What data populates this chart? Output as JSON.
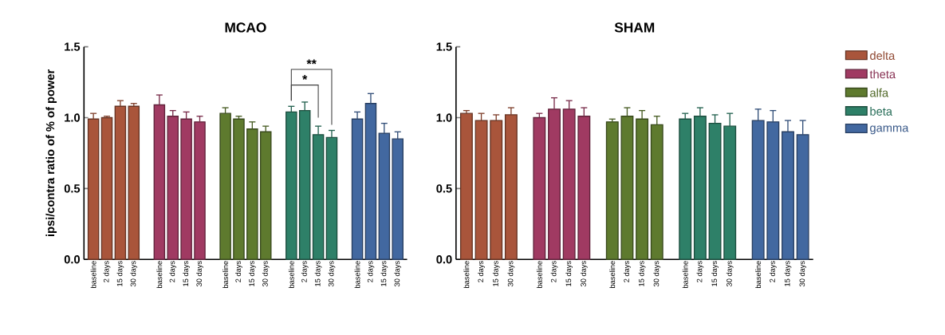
{
  "chart_data": [
    {
      "type": "bar",
      "title": "MCAO",
      "ylabel": "ipsi/contra ratio of % of power",
      "categories": [
        "baseline",
        "2 days",
        "15 days",
        "30 days",
        "baseline",
        "2 days",
        "15 days",
        "30 days",
        "baseline",
        "2 days",
        "15 days",
        "30 days",
        "baseline",
        "2 days",
        "15 days",
        "30 days",
        "baseline",
        "2 days",
        "15 days",
        "30 days"
      ],
      "ylim": [
        0,
        1.5
      ],
      "yticks": [
        {
          "value": 0,
          "label": "0.0"
        },
        {
          "value": 0.5,
          "label": "0.5"
        },
        {
          "value": 1,
          "label": "1.0"
        },
        {
          "value": 1.5,
          "label": "1.5"
        }
      ],
      "annotations": [
        "*",
        "**"
      ],
      "series": [
        {
          "color": "#a9553b",
          "values": [
            0.99,
            1.0,
            1.08,
            1.08,
            null,
            null,
            null,
            null,
            null,
            null,
            null,
            null,
            null,
            null,
            null,
            null,
            null,
            null,
            null,
            null
          ],
          "errors": [
            [
              0.99,
              1.03
            ],
            [
              1.0,
              1.01
            ],
            [
              1.08,
              1.12
            ],
            [
              1.08,
              1.1
            ],
            null,
            null,
            null,
            null,
            null,
            null,
            null,
            null,
            null,
            null,
            null,
            null,
            null,
            null,
            null,
            null
          ]
        },
        {
          "color": "#a03a62",
          "values": [
            null,
            null,
            null,
            null,
            1.09,
            1.01,
            0.99,
            0.97,
            null,
            null,
            null,
            null,
            null,
            null,
            null,
            null,
            null,
            null,
            null,
            null
          ],
          "errors": [
            null,
            null,
            null,
            null,
            [
              1.09,
              1.16
            ],
            [
              1.01,
              1.05
            ],
            [
              0.99,
              1.04
            ],
            [
              0.97,
              1.01
            ],
            null,
            null,
            null,
            null,
            null,
            null,
            null,
            null,
            null,
            null,
            null,
            null
          ]
        },
        {
          "color": "#5e7a2e",
          "values": [
            null,
            null,
            null,
            null,
            null,
            null,
            null,
            null,
            1.03,
            0.99,
            0.92,
            0.9,
            null,
            null,
            null,
            null,
            null,
            null,
            null,
            null
          ],
          "errors": [
            null,
            null,
            null,
            null,
            null,
            null,
            null,
            null,
            [
              1.03,
              1.07
            ],
            [
              0.99,
              1.01
            ],
            [
              0.92,
              0.97
            ],
            [
              0.9,
              0.94
            ],
            null,
            null,
            null,
            null,
            null,
            null,
            null,
            null
          ]
        },
        {
          "color": "#2e8068",
          "values": [
            null,
            null,
            null,
            null,
            null,
            null,
            null,
            null,
            null,
            null,
            null,
            null,
            1.04,
            1.05,
            0.88,
            0.86,
            null,
            null,
            null,
            null
          ],
          "errors": [
            null,
            null,
            null,
            null,
            null,
            null,
            null,
            null,
            null,
            null,
            null,
            null,
            [
              1.04,
              1.08
            ],
            [
              1.05,
              1.11
            ],
            [
              0.88,
              0.94
            ],
            [
              0.86,
              0.91
            ],
            null,
            null,
            null,
            null
          ]
        },
        {
          "color": "#4268a0",
          "values": [
            null,
            null,
            null,
            null,
            null,
            null,
            null,
            null,
            null,
            null,
            null,
            null,
            null,
            null,
            null,
            null,
            0.99,
            1.1,
            0.89,
            0.85
          ],
          "errors": [
            null,
            null,
            null,
            null,
            null,
            null,
            null,
            null,
            null,
            null,
            null,
            null,
            null,
            null,
            null,
            null,
            [
              0.99,
              1.04
            ],
            [
              1.1,
              1.17
            ],
            [
              0.89,
              0.96
            ],
            [
              0.85,
              0.9
            ]
          ]
        }
      ]
    },
    {
      "type": "bar",
      "title": "SHAM",
      "legend": "right",
      "categories": [
        "baseline",
        "2 days",
        "15 days",
        "30 days",
        "baseline",
        "2 days",
        "15 days",
        "30 days",
        "baseline",
        "2 days",
        "15 days",
        "30 days",
        "baseline",
        "2 days",
        "15 days",
        "30 days",
        "baseline",
        "2 days",
        "15 days",
        "30 days"
      ],
      "ylim": [
        0,
        1.5
      ],
      "yticks": [
        {
          "value": 0,
          "label": "0.0"
        },
        {
          "value": 0.5,
          "label": "0.5"
        },
        {
          "value": 1,
          "label": "1.0"
        },
        {
          "value": 1.5,
          "label": "1.5"
        }
      ],
      "series": [
        {
          "name": "delta",
          "color": "#a9553b",
          "values": [
            1.03,
            0.98,
            0.98,
            1.02,
            null,
            null,
            null,
            null,
            null,
            null,
            null,
            null,
            null,
            null,
            null,
            null,
            null,
            null,
            null,
            null
          ],
          "errors": [
            [
              1.03,
              1.05
            ],
            [
              0.98,
              1.03
            ],
            [
              0.98,
              1.02
            ],
            [
              1.02,
              1.07
            ],
            null,
            null,
            null,
            null,
            null,
            null,
            null,
            null,
            null,
            null,
            null,
            null,
            null,
            null,
            null,
            null
          ]
        },
        {
          "name": "theta",
          "color": "#a03a62",
          "values": [
            null,
            null,
            null,
            null,
            1.0,
            1.06,
            1.06,
            1.01,
            null,
            null,
            null,
            null,
            null,
            null,
            null,
            null,
            null,
            null,
            null,
            null
          ],
          "errors": [
            null,
            null,
            null,
            null,
            [
              1.0,
              1.03
            ],
            [
              1.06,
              1.14
            ],
            [
              1.06,
              1.12
            ],
            [
              1.01,
              1.07
            ],
            null,
            null,
            null,
            null,
            null,
            null,
            null,
            null,
            null,
            null,
            null,
            null
          ]
        },
        {
          "name": "alfa",
          "color": "#5e7a2e",
          "values": [
            null,
            null,
            null,
            null,
            null,
            null,
            null,
            null,
            0.97,
            1.01,
            0.99,
            0.95,
            null,
            null,
            null,
            null,
            null,
            null,
            null,
            null
          ],
          "errors": [
            null,
            null,
            null,
            null,
            null,
            null,
            null,
            null,
            [
              0.97,
              0.99
            ],
            [
              1.01,
              1.07
            ],
            [
              0.99,
              1.05
            ],
            [
              0.95,
              1.01
            ],
            null,
            null,
            null,
            null,
            null,
            null,
            null,
            null
          ]
        },
        {
          "name": "beta",
          "color": "#2e8068",
          "values": [
            null,
            null,
            null,
            null,
            null,
            null,
            null,
            null,
            null,
            null,
            null,
            null,
            0.99,
            1.01,
            0.96,
            0.94,
            null,
            null,
            null,
            null
          ],
          "errors": [
            null,
            null,
            null,
            null,
            null,
            null,
            null,
            null,
            null,
            null,
            null,
            null,
            [
              0.99,
              1.03
            ],
            [
              1.01,
              1.07
            ],
            [
              0.96,
              1.02
            ],
            [
              0.94,
              1.03
            ],
            null,
            null,
            null,
            null
          ]
        },
        {
          "name": "gamma",
          "color": "#4268a0",
          "values": [
            null,
            null,
            null,
            null,
            null,
            null,
            null,
            null,
            null,
            null,
            null,
            null,
            null,
            null,
            null,
            null,
            0.98,
            0.97,
            0.9,
            0.88
          ],
          "errors": [
            null,
            null,
            null,
            null,
            null,
            null,
            null,
            null,
            null,
            null,
            null,
            null,
            null,
            null,
            null,
            null,
            [
              0.98,
              1.06
            ],
            [
              0.97,
              1.05
            ],
            [
              0.9,
              0.98
            ],
            [
              0.88,
              0.98
            ]
          ]
        }
      ]
    }
  ]
}
